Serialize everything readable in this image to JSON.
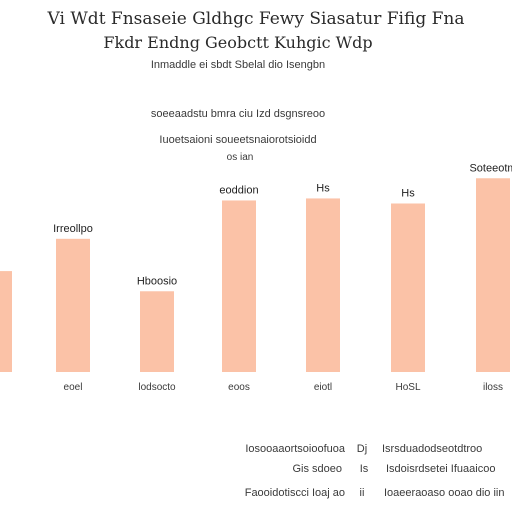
{
  "colors": {
    "bar": "#fbc2a7",
    "text_dark": "#1f1f1f",
    "text_mid": "#3a3a3a",
    "axis": "#e6e6e6",
    "background": "#ffffff"
  },
  "chart_data": {
    "type": "bar",
    "title_lines": [
      "Vi Wdt Fnsaseie Gldhgc Fewy Siasatur Fifig Fna",
      "Fkdr Endng Geobctt Kuhgic Wdp"
    ],
    "subtitle": "Inmaddle ei sbdt Sbelal dio Isengbn",
    "annotation_lines": [
      "soeeaadstu bmra ciu Izd dsgnsreoo",
      "Iuoetsaioni soueetsnaiorotsioidd",
      "os ian"
    ],
    "categories": [
      "",
      "eoel",
      "lodsocto",
      "eoos",
      "eiotl",
      "HoSL",
      "iloss"
    ],
    "values": [
      100,
      132,
      80,
      170,
      172,
      167,
      192
    ],
    "value_labels": [
      "",
      "Irreollpo",
      "Hboosio",
      "eoddion",
      "Hs",
      "Hs",
      "Soteeotm"
    ],
    "ylim": [
      0,
      220
    ],
    "grid": false
  },
  "footer_notes": [
    {
      "left": "Iosooaaortsoioofuoa",
      "mid": "Dj",
      "right": "Isrsduadodseotdtroo"
    },
    {
      "left": "Gis sdoeo",
      "mid": "Is",
      "right": "Isdoisrdsetei Ifuaaicoo"
    },
    {
      "left": "Faooidotiscci Ioaj ao",
      "mid": "ii",
      "right": "Ioaeeraoaso ooao dio iin"
    }
  ]
}
